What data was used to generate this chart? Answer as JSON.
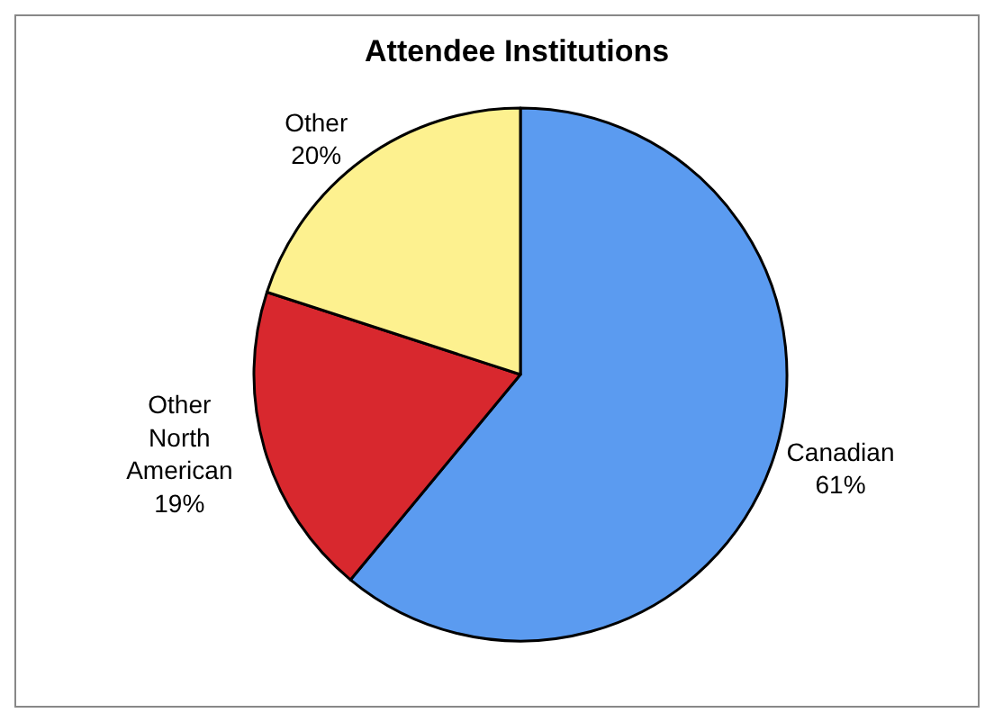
{
  "chart_data": {
    "type": "pie",
    "title": "Attendee Institutions",
    "categories": [
      "Canadian",
      "Other North American",
      "Other"
    ],
    "values": [
      61,
      19,
      20
    ],
    "value_labels": [
      "61%",
      "19%",
      "20%"
    ],
    "colors": [
      "#5b9bf0",
      "#d8282e",
      "#fdf18f"
    ],
    "legend": false
  }
}
